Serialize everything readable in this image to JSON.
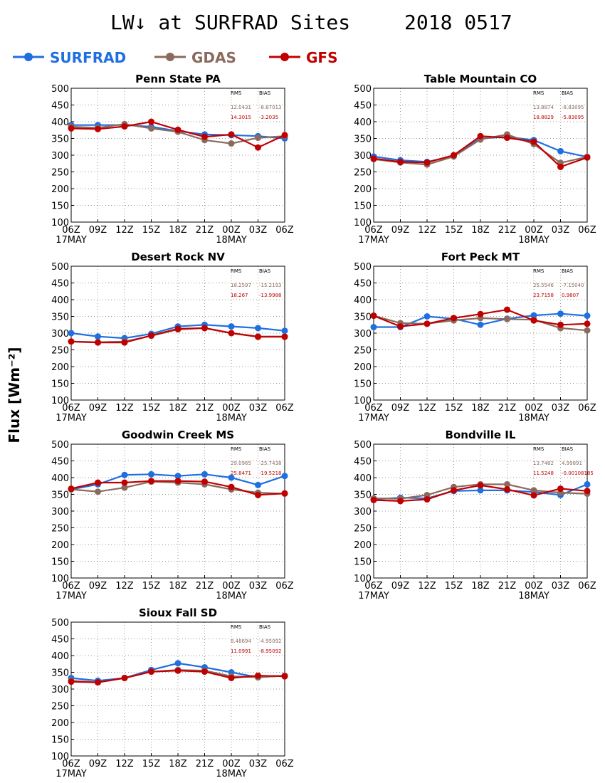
{
  "title_left": "LW↓ at SURFRAD Sites",
  "title_right": "2018 0517",
  "ylabel": "Flux [Wm⁻²]",
  "legend": [
    {
      "name": "SURFRAD",
      "color": "#1f6fe0"
    },
    {
      "name": "GDAS",
      "color": "#8b6a5e"
    },
    {
      "name": "GFS",
      "color": "#c00000"
    }
  ],
  "stats_header": {
    "rms": "RMS",
    "bias": "BIAS"
  },
  "colors": {
    "surfrad": "#1f6fe0",
    "gdas": "#8b6a5e",
    "gfs": "#c00000",
    "grid": "#9a9a9a"
  },
  "chart_data": [
    {
      "type": "line",
      "title": "Penn State PA",
      "categories": [
        "06Z",
        "09Z",
        "12Z",
        "15Z",
        "18Z",
        "21Z",
        "00Z",
        "03Z",
        "06Z"
      ],
      "date_labels": [
        "17MAY",
        "18MAY"
      ],
      "ylim": [
        100,
        500
      ],
      "yticks": [
        100,
        150,
        200,
        250,
        300,
        350,
        400,
        450,
        500
      ],
      "grid": true,
      "series": [
        {
          "name": "SURFRAD",
          "values": [
            390,
            390,
            390,
            385,
            372,
            362,
            360,
            357,
            350
          ]
        },
        {
          "name": "GDAS",
          "values": [
            385,
            382,
            393,
            380,
            370,
            345,
            335,
            352,
            357
          ]
        },
        {
          "name": "GFS",
          "values": [
            380,
            378,
            386,
            400,
            376,
            355,
            362,
            323,
            360
          ]
        }
      ],
      "stats": {
        "gdas": [
          "12.0431",
          "-8.87013"
        ],
        "gfs": [
          "14.3015",
          "-3.2035"
        ]
      }
    },
    {
      "type": "line",
      "title": "Table Mountain CO",
      "categories": [
        "06Z",
        "09Z",
        "12Z",
        "15Z",
        "18Z",
        "21Z",
        "00Z",
        "03Z",
        "06Z"
      ],
      "date_labels": [
        "17MAY",
        "18MAY"
      ],
      "ylim": [
        100,
        500
      ],
      "yticks": [
        100,
        150,
        200,
        250,
        300,
        350,
        400,
        450,
        500
      ],
      "grid": true,
      "series": [
        {
          "name": "SURFRAD",
          "values": [
            296,
            285,
            280,
            298,
            350,
            355,
            345,
            312,
            295
          ]
        },
        {
          "name": "GDAS",
          "values": [
            288,
            278,
            272,
            296,
            347,
            362,
            333,
            277,
            295
          ]
        },
        {
          "name": "GFS",
          "values": [
            290,
            280,
            278,
            300,
            357,
            352,
            340,
            265,
            293
          ]
        }
      ],
      "stats": {
        "gdas": [
          "13.8874",
          "-8.83095"
        ],
        "gfs": [
          "18.8829",
          "-5.83095"
        ]
      }
    },
    {
      "type": "line",
      "title": "Desert Rock NV",
      "categories": [
        "06Z",
        "09Z",
        "12Z",
        "15Z",
        "18Z",
        "21Z",
        "00Z",
        "03Z",
        "06Z"
      ],
      "date_labels": [
        "17MAY",
        "18MAY"
      ],
      "ylim": [
        100,
        500
      ],
      "yticks": [
        100,
        150,
        200,
        250,
        300,
        350,
        400,
        450,
        500
      ],
      "grid": true,
      "series": [
        {
          "name": "SURFRAD",
          "values": [
            300,
            290,
            285,
            298,
            320,
            325,
            320,
            315,
            307
          ]
        },
        {
          "name": "GDAS",
          "values": [
            275,
            273,
            275,
            292,
            311,
            315,
            300,
            290,
            290
          ]
        },
        {
          "name": "GFS",
          "values": [
            275,
            272,
            272,
            293,
            313,
            315,
            300,
            289,
            289
          ]
        }
      ],
      "stats": {
        "gdas": [
          "18.2597",
          "-15.2193"
        ],
        "gfs": [
          "18.267",
          "-13.9988"
        ]
      }
    },
    {
      "type": "line",
      "title": "Fort Peck MT",
      "categories": [
        "06Z",
        "09Z",
        "12Z",
        "15Z",
        "18Z",
        "21Z",
        "00Z",
        "03Z",
        "06Z"
      ],
      "date_labels": [
        "17MAY",
        "18MAY"
      ],
      "ylim": [
        100,
        500
      ],
      "yticks": [
        100,
        150,
        200,
        250,
        300,
        350,
        400,
        450,
        500
      ],
      "grid": true,
      "series": [
        {
          "name": "SURFRAD",
          "values": [
            318,
            318,
            350,
            343,
            325,
            343,
            353,
            358,
            352
          ]
        },
        {
          "name": "GDAS",
          "values": [
            352,
            330,
            328,
            338,
            345,
            342,
            340,
            315,
            308
          ]
        },
        {
          "name": "GFS",
          "values": [
            352,
            320,
            328,
            345,
            357,
            370,
            338,
            325,
            328
          ]
        }
      ],
      "stats": {
        "gdas": [
          "25.5546",
          "-7.15040"
        ],
        "gfs": [
          "23.7158",
          "0.9807"
        ]
      }
    },
    {
      "type": "line",
      "title": "Goodwin Creek MS",
      "categories": [
        "06Z",
        "09Z",
        "12Z",
        "15Z",
        "18Z",
        "21Z",
        "00Z",
        "03Z",
        "06Z"
      ],
      "date_labels": [
        "17MAY",
        "18MAY"
      ],
      "ylim": [
        100,
        500
      ],
      "yticks": [
        100,
        150,
        200,
        250,
        300,
        350,
        400,
        450,
        500
      ],
      "grid": true,
      "series": [
        {
          "name": "SURFRAD",
          "values": [
            365,
            380,
            408,
            410,
            405,
            410,
            400,
            378,
            405
          ]
        },
        {
          "name": "GDAS",
          "values": [
            365,
            358,
            370,
            388,
            385,
            380,
            365,
            355,
            352
          ]
        },
        {
          "name": "GFS",
          "values": [
            367,
            385,
            385,
            390,
            390,
            388,
            372,
            348,
            353
          ]
        }
      ],
      "stats": {
        "gdas": [
          "29.0965",
          "-25.7438"
        ],
        "gfs": [
          "25.8471",
          "-19.5218"
        ]
      }
    },
    {
      "type": "line",
      "title": "Bondville IL",
      "categories": [
        "06Z",
        "09Z",
        "12Z",
        "15Z",
        "18Z",
        "21Z",
        "00Z",
        "03Z",
        "06Z"
      ],
      "date_labels": [
        "17MAY",
        "18MAY"
      ],
      "ylim": [
        100,
        500
      ],
      "yticks": [
        100,
        150,
        200,
        250,
        300,
        350,
        400,
        450,
        500
      ],
      "grid": true,
      "series": [
        {
          "name": "SURFRAD",
          "values": [
            335,
            340,
            338,
            360,
            362,
            362,
            357,
            348,
            380
          ]
        },
        {
          "name": "GDAS",
          "values": [
            338,
            337,
            348,
            372,
            380,
            380,
            362,
            355,
            352
          ]
        },
        {
          "name": "GFS",
          "values": [
            333,
            330,
            335,
            362,
            377,
            365,
            347,
            367,
            360
          ]
        }
      ],
      "stats": {
        "gdas": [
          "13.7482",
          "4.99891"
        ],
        "gfs": [
          "11.5248",
          "-0.00108185"
        ]
      }
    },
    {
      "type": "line",
      "title": "Sioux Fall SD",
      "categories": [
        "06Z",
        "09Z",
        "12Z",
        "15Z",
        "18Z",
        "21Z",
        "00Z",
        "03Z",
        "06Z"
      ],
      "date_labels": [
        "17MAY",
        "18MAY"
      ],
      "ylim": [
        100,
        500
      ],
      "yticks": [
        100,
        150,
        200,
        250,
        300,
        350,
        400,
        450,
        500
      ],
      "grid": true,
      "series": [
        {
          "name": "SURFRAD",
          "values": [
            333,
            325,
            333,
            357,
            377,
            365,
            350,
            335,
            340
          ]
        },
        {
          "name": "GDAS",
          "values": [
            325,
            320,
            333,
            352,
            357,
            355,
            338,
            335,
            340
          ]
        },
        {
          "name": "GFS",
          "values": [
            322,
            320,
            333,
            352,
            355,
            352,
            333,
            340,
            338
          ]
        }
      ],
      "stats": {
        "gdas": [
          "8.48694",
          "-4.95092"
        ],
        "gfs": [
          "11.0991",
          "-8.95092"
        ]
      }
    }
  ]
}
